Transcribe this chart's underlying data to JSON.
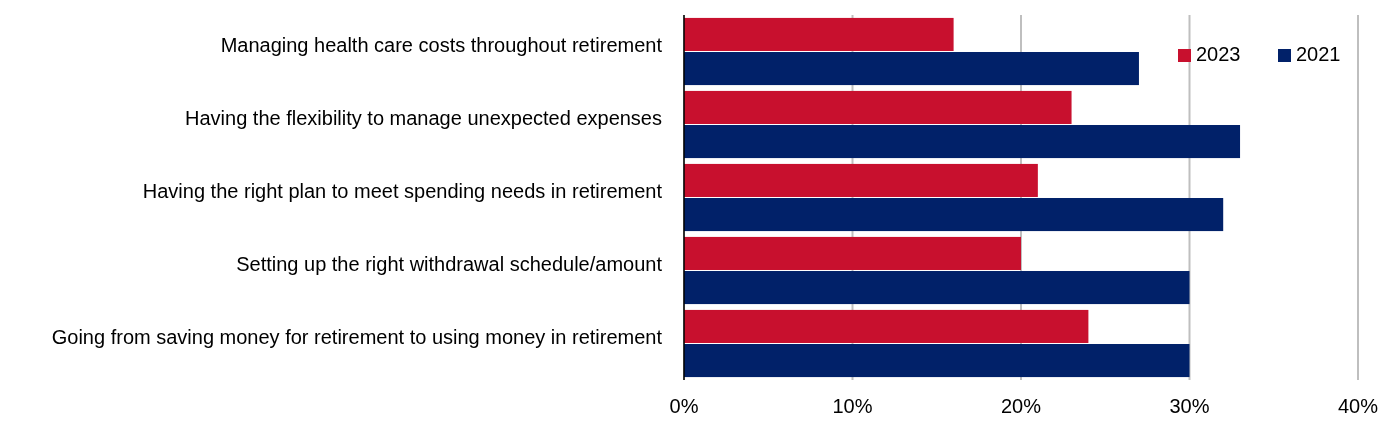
{
  "chart_data": {
    "type": "bar",
    "orientation": "horizontal",
    "categories": [
      "Managing health care costs throughout retirement",
      "Having the flexibility to manage unexpected expenses",
      "Having the right plan to meet spending needs in retirement",
      "Setting up the right withdrawal schedule/amount",
      "Going from saving money for retirement to using money in retirement"
    ],
    "series": [
      {
        "name": "2023",
        "color": "#c8102e",
        "values": [
          16,
          23,
          21,
          20,
          24
        ]
      },
      {
        "name": "2021",
        "color": "#012169",
        "values": [
          27,
          33,
          32,
          30,
          30
        ]
      }
    ],
    "xlim": [
      0,
      40
    ],
    "xticks": [
      {
        "value": 0,
        "label": "0%"
      },
      {
        "value": 10,
        "label": "10%"
      },
      {
        "value": 20,
        "label": "20%"
      },
      {
        "value": 30,
        "label": "30%"
      },
      {
        "value": 40,
        "label": "40%"
      }
    ],
    "grid": "x",
    "legend": "top right"
  }
}
